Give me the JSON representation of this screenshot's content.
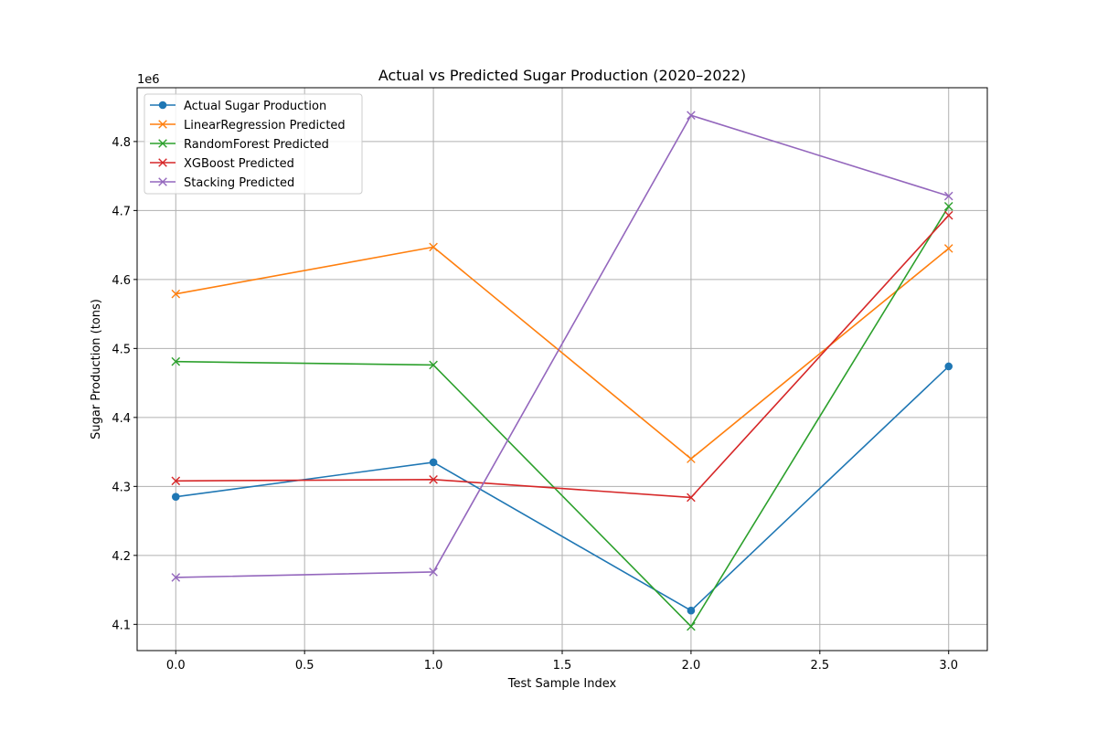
{
  "chart_data": {
    "type": "line",
    "title": "Actual vs Predicted Sugar Production (2020–2022)",
    "xlabel": "Test Sample Index",
    "ylabel": "Sugar Production (tons)",
    "y_offset_label": "1e6",
    "x": [
      0,
      1,
      2,
      3
    ],
    "xlim": [
      -0.15,
      3.15
    ],
    "ylim": [
      4.062,
      4.878
    ],
    "x_ticks": [
      0.0,
      0.5,
      1.0,
      1.5,
      2.0,
      2.5,
      3.0
    ],
    "x_tick_labels": [
      "0.0",
      "0.5",
      "1.0",
      "1.5",
      "2.0",
      "2.5",
      "3.0"
    ],
    "y_ticks": [
      4.1,
      4.2,
      4.3,
      4.4,
      4.5,
      4.6,
      4.7,
      4.8
    ],
    "y_tick_labels": [
      "4.1",
      "4.2",
      "4.3",
      "4.4",
      "4.5",
      "4.6",
      "4.7",
      "4.8"
    ],
    "grid": true,
    "legend_position": "top-left",
    "series": [
      {
        "name": "Actual Sugar Production",
        "color": "#1f77b4",
        "marker": "circle",
        "values": [
          4.285,
          4.335,
          4.12,
          4.474
        ]
      },
      {
        "name": "LinearRegression Predicted",
        "color": "#ff7f0e",
        "marker": "x",
        "values": [
          4.579,
          4.647,
          4.34,
          4.645
        ]
      },
      {
        "name": "RandomForest Predicted",
        "color": "#2ca02c",
        "marker": "x",
        "values": [
          4.481,
          4.476,
          4.097,
          4.706
        ]
      },
      {
        "name": "XGBoost Predicted",
        "color": "#d62728",
        "marker": "x",
        "values": [
          4.308,
          4.31,
          4.284,
          4.693
        ]
      },
      {
        "name": "Stacking Predicted",
        "color": "#9467bd",
        "marker": "x",
        "values": [
          4.168,
          4.176,
          4.838,
          4.721
        ]
      }
    ]
  }
}
